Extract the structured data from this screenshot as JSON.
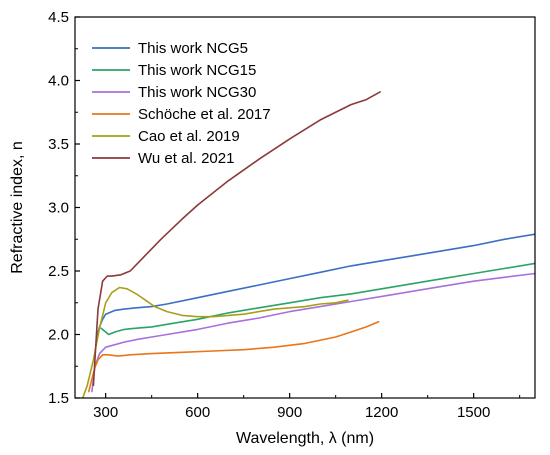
{
  "chart_data": {
    "type": "line",
    "title": "",
    "xlabel": "Wavelength, λ (nm)",
    "ylabel": "Refractive index, n",
    "xlim": [
      200,
      1700
    ],
    "ylim": [
      1.5,
      4.5
    ],
    "xticks": [
      300,
      600,
      900,
      1200,
      1500
    ],
    "xtick_labels": [
      "300",
      "600",
      "900",
      "1200",
      "1500"
    ],
    "yticks": [
      1.5,
      2.0,
      2.5,
      3.0,
      3.5,
      4.0,
      4.5
    ],
    "ytick_labels": [
      "1.5",
      "2.0",
      "2.5",
      "3.0",
      "3.5",
      "4.0",
      "4.5"
    ],
    "grid": false,
    "legend_position": "top-left",
    "series": [
      {
        "name": "This work NCG5",
        "color": "#3a6fc4",
        "x": [
          270,
          280,
          290,
          300,
          330,
          360,
          400,
          450,
          500,
          600,
          700,
          800,
          900,
          1000,
          1100,
          1200,
          1300,
          1400,
          1500,
          1600,
          1700
        ],
        "y": [
          1.97,
          2.06,
          2.12,
          2.16,
          2.19,
          2.2,
          2.21,
          2.22,
          2.24,
          2.29,
          2.34,
          2.39,
          2.44,
          2.49,
          2.54,
          2.58,
          2.62,
          2.66,
          2.7,
          2.75,
          2.79
        ]
      },
      {
        "name": "This work NCG15",
        "color": "#2aa36a",
        "x": [
          285,
          300,
          310,
          330,
          360,
          400,
          450,
          500,
          600,
          700,
          800,
          900,
          1000,
          1100,
          1200,
          1300,
          1400,
          1500,
          1600,
          1700
        ],
        "y": [
          2.05,
          2.02,
          2.0,
          2.02,
          2.04,
          2.05,
          2.06,
          2.08,
          2.12,
          2.17,
          2.21,
          2.25,
          2.29,
          2.32,
          2.36,
          2.4,
          2.44,
          2.48,
          2.52,
          2.56
        ]
      },
      {
        "name": "This work NCG30",
        "color": "#a870dd",
        "x": [
          255,
          265,
          280,
          300,
          330,
          360,
          400,
          450,
          500,
          600,
          700,
          800,
          900,
          1000,
          1100,
          1200,
          1300,
          1400,
          1500,
          1600,
          1700
        ],
        "y": [
          1.55,
          1.75,
          1.85,
          1.9,
          1.92,
          1.94,
          1.96,
          1.98,
          2.0,
          2.04,
          2.09,
          2.13,
          2.18,
          2.22,
          2.26,
          2.3,
          2.34,
          2.38,
          2.42,
          2.45,
          2.48
        ]
      },
      {
        "name": "Schöche et al. 2017",
        "color": "#e8761a",
        "x": [
          245,
          255,
          265,
          275,
          290,
          310,
          340,
          380,
          450,
          550,
          650,
          750,
          850,
          950,
          1050,
          1100,
          1150,
          1190
        ],
        "y": [
          1.55,
          1.65,
          1.74,
          1.8,
          1.84,
          1.84,
          1.83,
          1.84,
          1.85,
          1.86,
          1.87,
          1.88,
          1.9,
          1.93,
          1.98,
          2.02,
          2.06,
          2.1
        ]
      },
      {
        "name": "Cao et al. 2019",
        "color": "#a6a019",
        "x": [
          225,
          240,
          260,
          280,
          300,
          320,
          345,
          370,
          400,
          430,
          460,
          500,
          550,
          600,
          650,
          700,
          750,
          800,
          850,
          900,
          950,
          1000,
          1050,
          1090
        ],
        "y": [
          1.5,
          1.6,
          1.8,
          2.05,
          2.25,
          2.33,
          2.37,
          2.36,
          2.32,
          2.27,
          2.22,
          2.18,
          2.15,
          2.14,
          2.14,
          2.15,
          2.16,
          2.18,
          2.2,
          2.21,
          2.22,
          2.24,
          2.25,
          2.27
        ]
      },
      {
        "name": "Wu et al. 2021",
        "color": "#8b3a3a",
        "x": [
          260,
          275,
          290,
          305,
          320,
          350,
          380,
          420,
          480,
          550,
          600,
          700,
          800,
          900,
          1000,
          1100,
          1150,
          1195
        ],
        "y": [
          1.6,
          2.2,
          2.42,
          2.46,
          2.46,
          2.47,
          2.5,
          2.6,
          2.75,
          2.91,
          3.02,
          3.21,
          3.38,
          3.54,
          3.69,
          3.81,
          3.85,
          3.91
        ]
      }
    ]
  }
}
